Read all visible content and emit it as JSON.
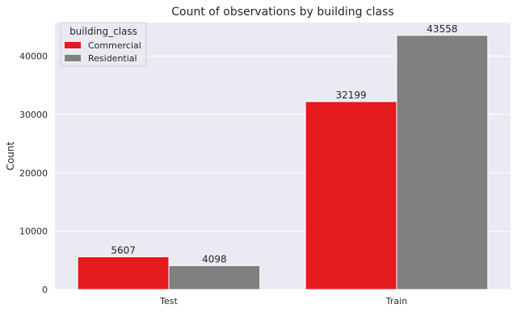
{
  "colors": {
    "background": "#eaeaf2",
    "grid": "#ffffff",
    "Commercial": "#e41a1c",
    "Residential": "#808080"
  },
  "chart_data": {
    "type": "bar",
    "title": "Count of observations by building class",
    "xlabel": "",
    "ylabel": "Count",
    "categories": [
      "Test",
      "Train"
    ],
    "series": [
      {
        "name": "Commercial",
        "values": [
          5607,
          32199
        ]
      },
      {
        "name": "Residential",
        "values": [
          4098,
          43558
        ]
      }
    ],
    "ylim": [
      0,
      45738
    ],
    "yticks": [
      0,
      10000,
      20000,
      30000,
      40000
    ],
    "grid": true,
    "legend": {
      "title": "building_class",
      "placement": "top-left"
    },
    "data_labels": true
  }
}
